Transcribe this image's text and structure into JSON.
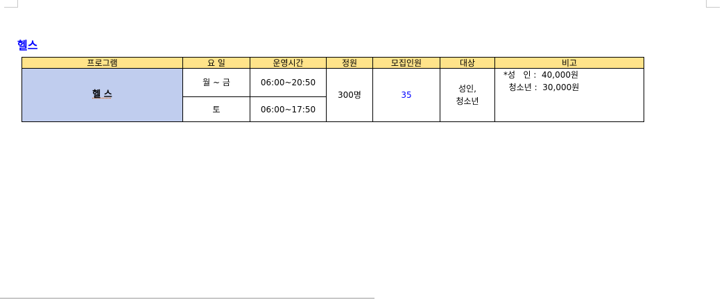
{
  "corner_marks": "crop-marks",
  "title": "헬스",
  "table": {
    "headers": [
      "프로그램",
      "요 일",
      "운영시간",
      "정원",
      "모집인원",
      "대상",
      "비고"
    ],
    "program": "헬 스",
    "rows": [
      {
        "day": "월 ~ 금",
        "hours": "06:00~20:50"
      },
      {
        "day": "토",
        "hours": "06:00~17:50"
      }
    ],
    "capacity": "300명",
    "recruited": "35",
    "target_line1": "성인,",
    "target_line2": "청소년",
    "note_line1": "*성   인 :  40,000원",
    "note_line2": "  청소년 :  30,000원"
  },
  "colors": {
    "title": "#0000ff",
    "header_bg": "#ffe38a",
    "program_bg": "#c0cdee",
    "recruited": "#0000ff"
  }
}
